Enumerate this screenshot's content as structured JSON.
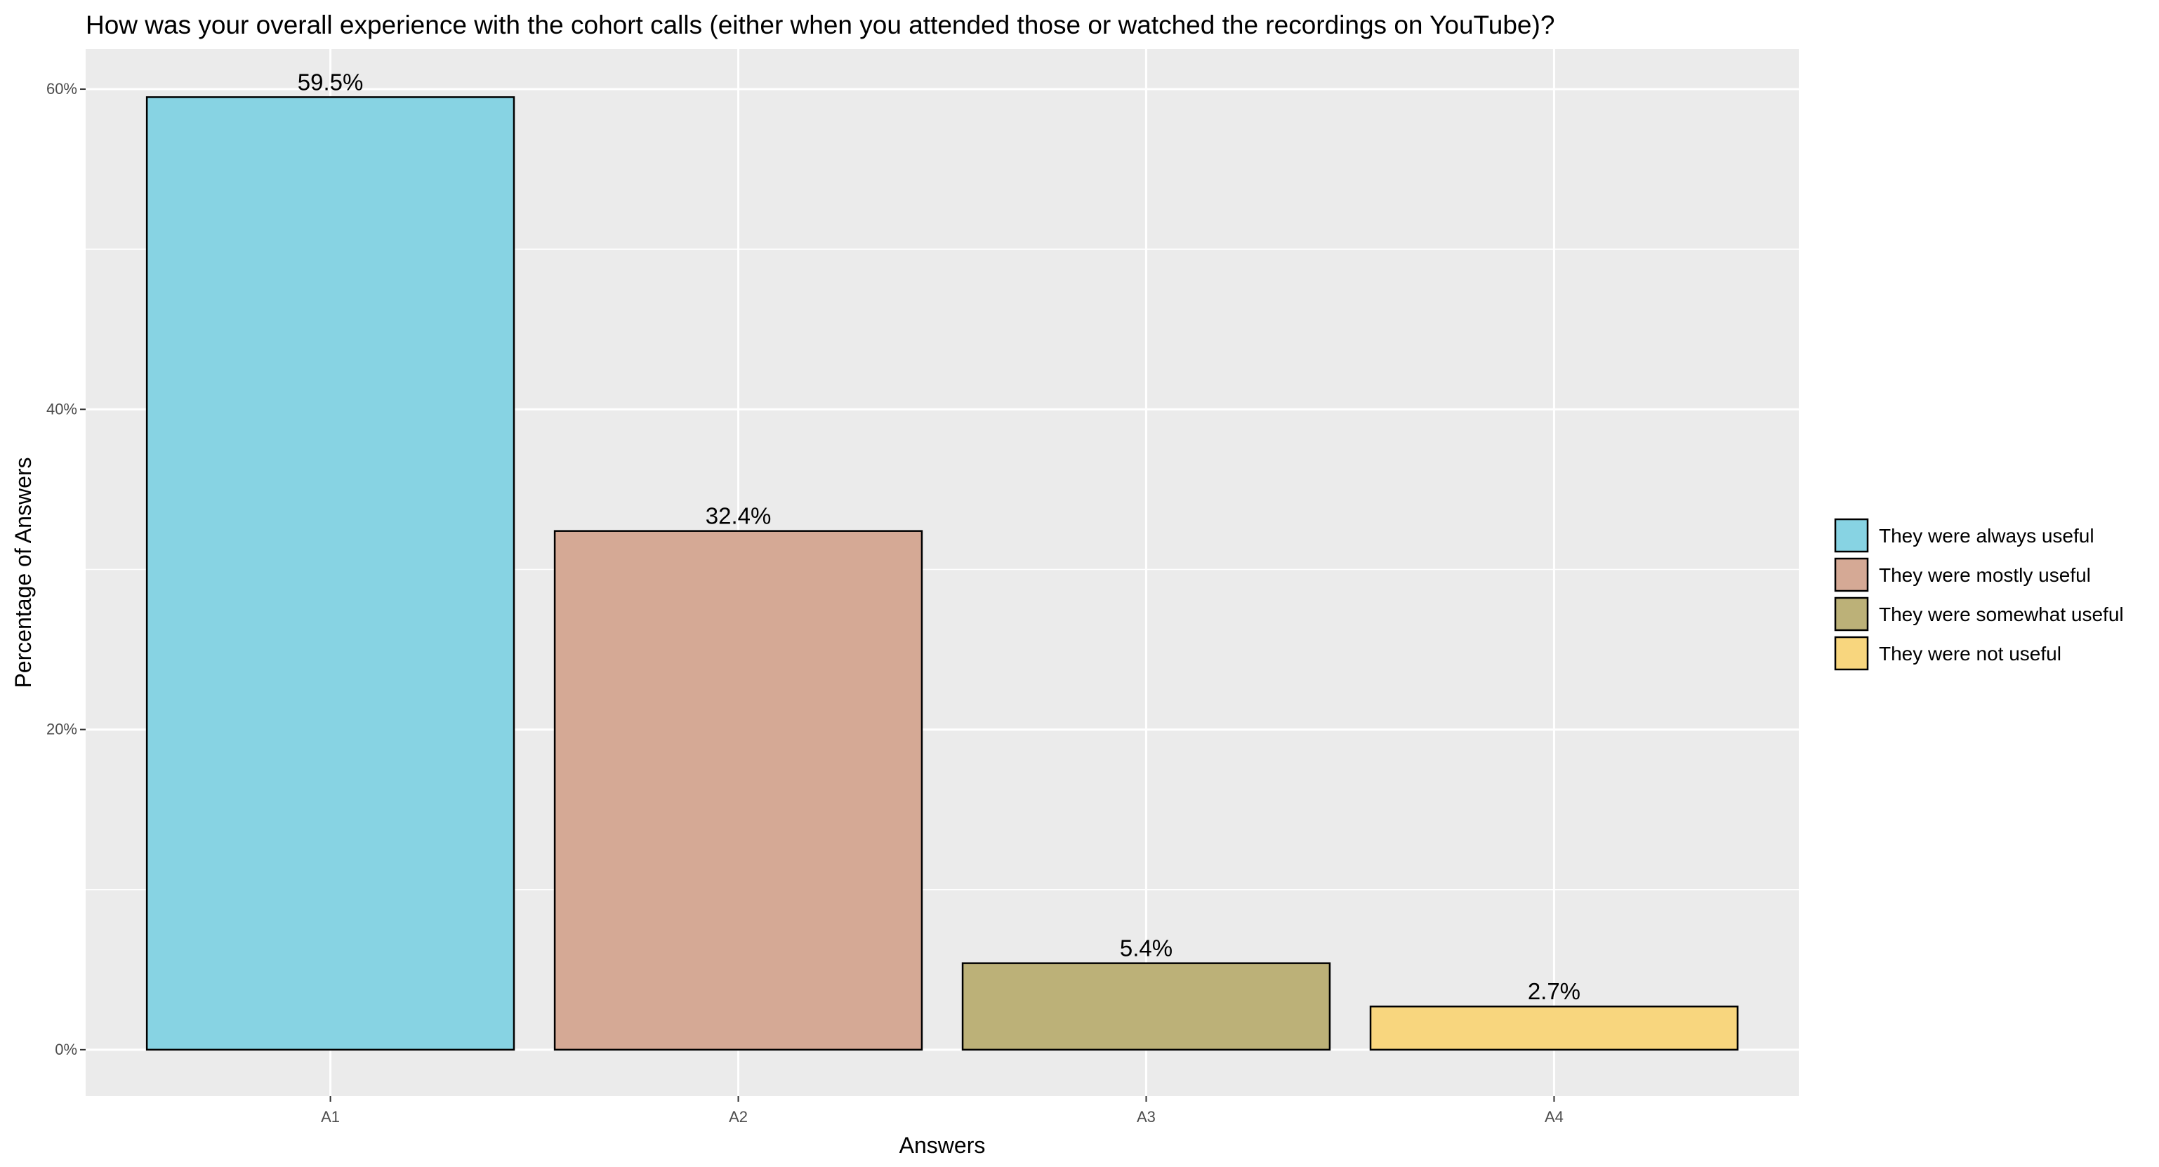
{
  "chart_data": {
    "type": "bar",
    "title": "How was your overall experience with the cohort calls (either when you attended those or watched the recordings on YouTube)?",
    "xlabel": "Answers",
    "ylabel": "Percentage of Answers",
    "categories": [
      "A1",
      "A2",
      "A3",
      "A4"
    ],
    "values": [
      59.5,
      32.4,
      5.4,
      2.7
    ],
    "data_labels": [
      "59.5%",
      "32.4%",
      "5.4%",
      "2.7%"
    ],
    "colors": [
      "#87d3e3",
      "#d5a995",
      "#bcb178",
      "#f8d67e"
    ],
    "ylim": [
      -2.9,
      62.5
    ],
    "yticks": [
      0,
      20,
      40,
      60
    ],
    "ytick_labels": [
      "0%",
      "20%",
      "40%",
      "60%"
    ],
    "grid": true,
    "legend": {
      "position": "right",
      "entries": [
        {
          "label": "They were always useful",
          "color": "#87d3e3"
        },
        {
          "label": "They were mostly useful",
          "color": "#d5a995"
        },
        {
          "label": "They were somewhat useful",
          "color": "#bcb178"
        },
        {
          "label": "They were not useful",
          "color": "#f8d67e"
        }
      ]
    },
    "panel_background": "#ebebeb",
    "gridline_color": "#ffffff"
  }
}
